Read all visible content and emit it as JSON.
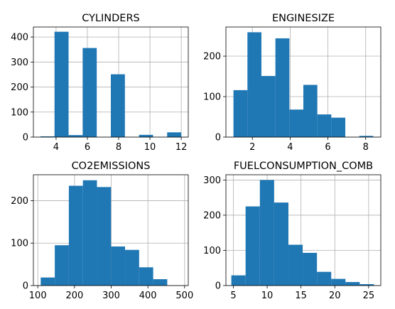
{
  "chart_data": [
    {
      "type": "bar",
      "title": "CYLINDERS",
      "bar_color": "#1f77b4",
      "grid": true,
      "xlim": [
        2.55,
        12.45
      ],
      "ylim": [
        0,
        440
      ],
      "xticks": [
        4,
        6,
        8,
        10,
        12
      ],
      "yticks": [
        0,
        100,
        200,
        300,
        400
      ],
      "bins": [
        {
          "x0": 3.0,
          "x1": 3.9,
          "value": 3
        },
        {
          "x0": 3.9,
          "x1": 4.8,
          "value": 421
        },
        {
          "x0": 4.8,
          "x1": 5.7,
          "value": 8
        },
        {
          "x0": 5.7,
          "x1": 6.6,
          "value": 356
        },
        {
          "x0": 6.6,
          "x1": 7.5,
          "value": 0
        },
        {
          "x0": 7.5,
          "x1": 8.4,
          "value": 251
        },
        {
          "x0": 8.4,
          "x1": 9.3,
          "value": 0
        },
        {
          "x0": 9.3,
          "x1": 10.2,
          "value": 9
        },
        {
          "x0": 10.2,
          "x1": 11.1,
          "value": 0
        },
        {
          "x0": 11.1,
          "x1": 12.0,
          "value": 19
        }
      ]
    },
    {
      "type": "bar",
      "title": "ENGINESIZE",
      "bar_color": "#1f77b4",
      "grid": true,
      "xlim": [
        0.6,
        8.8
      ],
      "ylim": [
        0,
        272
      ],
      "xticks": [
        2,
        4,
        6,
        8
      ],
      "yticks": [
        0,
        100,
        200
      ],
      "bins": [
        {
          "x0": 1.0,
          "x1": 1.74,
          "value": 116
        },
        {
          "x0": 1.74,
          "x1": 2.48,
          "value": 259
        },
        {
          "x0": 2.48,
          "x1": 3.22,
          "value": 151
        },
        {
          "x0": 3.22,
          "x1": 3.96,
          "value": 244
        },
        {
          "x0": 3.96,
          "x1": 4.7,
          "value": 68
        },
        {
          "x0": 4.7,
          "x1": 5.44,
          "value": 129
        },
        {
          "x0": 5.44,
          "x1": 6.18,
          "value": 56
        },
        {
          "x0": 6.18,
          "x1": 6.92,
          "value": 48
        },
        {
          "x0": 6.92,
          "x1": 7.66,
          "value": 0
        },
        {
          "x0": 7.66,
          "x1": 8.4,
          "value": 3
        }
      ]
    },
    {
      "type": "bar",
      "title": "CO2EMISSIONS",
      "bar_color": "#1f77b4",
      "grid": true,
      "xlim": [
        88,
        510
      ],
      "ylim": [
        0,
        261
      ],
      "xticks": [
        100,
        200,
        300,
        400,
        500
      ],
      "yticks": [
        0,
        100,
        200
      ],
      "bins": [
        {
          "x0": 108,
          "x1": 146.3,
          "value": 19
        },
        {
          "x0": 146.3,
          "x1": 184.6,
          "value": 95
        },
        {
          "x0": 184.6,
          "x1": 222.9,
          "value": 235
        },
        {
          "x0": 222.9,
          "x1": 261.2,
          "value": 248
        },
        {
          "x0": 261.2,
          "x1": 299.5,
          "value": 232
        },
        {
          "x0": 299.5,
          "x1": 337.8,
          "value": 92
        },
        {
          "x0": 337.8,
          "x1": 376.1,
          "value": 84
        },
        {
          "x0": 376.1,
          "x1": 414.4,
          "value": 43
        },
        {
          "x0": 414.4,
          "x1": 452.7,
          "value": 15
        },
        {
          "x0": 452.7,
          "x1": 491.0,
          "value": 0
        }
      ]
    },
    {
      "type": "bar",
      "title": "FUELCONSUMPTION_COMB",
      "bar_color": "#1f77b4",
      "grid": true,
      "xlim": [
        3.9,
        26.8
      ],
      "ylim": [
        0,
        315
      ],
      "xticks": [
        5,
        10,
        15,
        20,
        25
      ],
      "yticks": [
        0,
        100,
        200,
        300
      ],
      "bins": [
        {
          "x0": 4.7,
          "x1": 6.81,
          "value": 29
        },
        {
          "x0": 6.81,
          "x1": 8.92,
          "value": 225
        },
        {
          "x0": 8.92,
          "x1": 11.03,
          "value": 300
        },
        {
          "x0": 11.03,
          "x1": 13.14,
          "value": 236
        },
        {
          "x0": 13.14,
          "x1": 15.25,
          "value": 116
        },
        {
          "x0": 15.25,
          "x1": 17.36,
          "value": 93
        },
        {
          "x0": 17.36,
          "x1": 19.47,
          "value": 39
        },
        {
          "x0": 19.47,
          "x1": 21.58,
          "value": 19
        },
        {
          "x0": 21.58,
          "x1": 23.69,
          "value": 10
        },
        {
          "x0": 23.69,
          "x1": 25.8,
          "value": 4
        }
      ]
    }
  ]
}
